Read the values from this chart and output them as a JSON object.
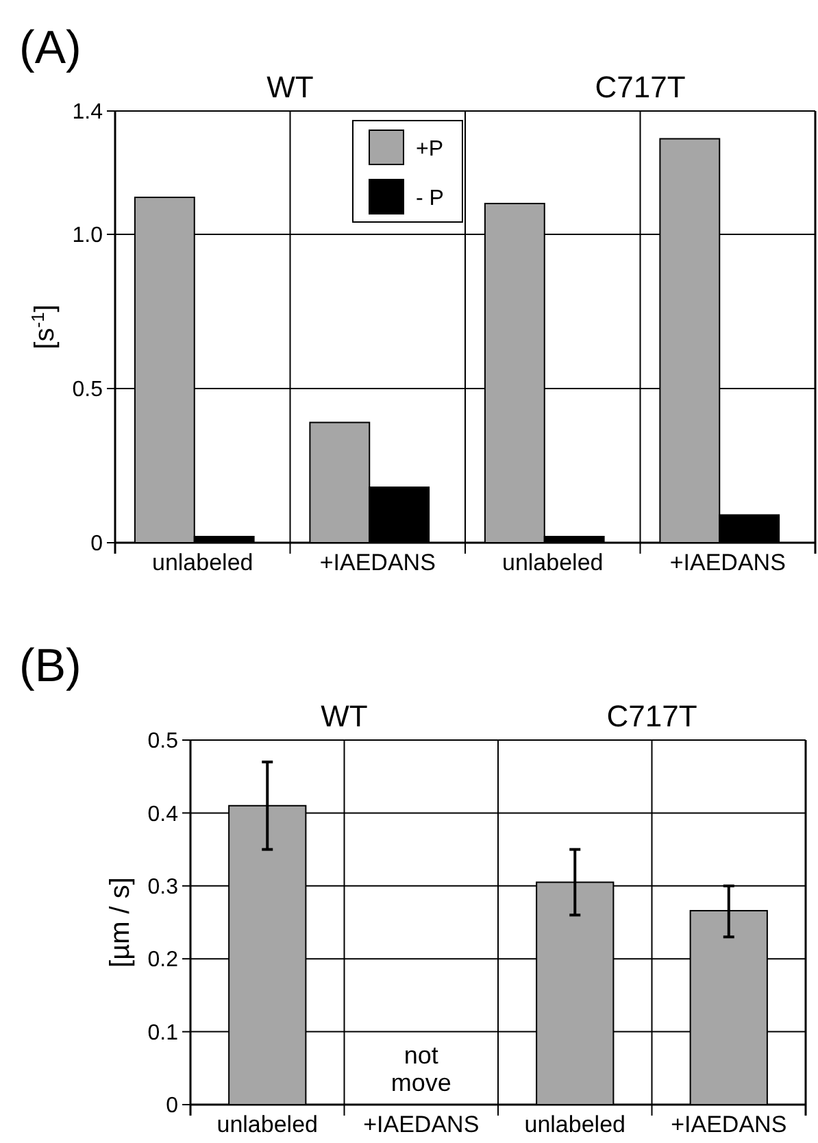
{
  "chart_data": [
    {
      "type": "bar",
      "title": "(A)",
      "ylabel": "[s$^{-1}$]",
      "categories": [
        "unlabeled",
        "+IAEDANS",
        "unlabeled",
        "+IAEDANS"
      ],
      "series": [
        {
          "name": "+P",
          "color": "#a6a6a6",
          "values": [
            1.12,
            0.39,
            1.1,
            1.31
          ]
        },
        {
          "name": "- P",
          "color": "#000000",
          "values": [
            0.02,
            0.18,
            0.02,
            0.09
          ]
        }
      ],
      "ylim": [
        0,
        1.4
      ],
      "yticks": [
        0,
        0.5,
        {
          "value": 1,
          "label": "1.0"
        },
        1.4
      ],
      "grid": true,
      "legend": "top",
      "annotations": [
        "WT",
        "C717T"
      ]
    },
    {
      "type": "bar",
      "title": "(B)",
      "ylabel": "[µm / s]",
      "categories": [
        "unlabeled",
        "+IAEDANS",
        "unlabeled",
        "+IAEDANS"
      ],
      "series": [
        {
          "color": "#a6a6a6",
          "values": [
            0.41,
            null,
            0.305,
            0.266
          ],
          "errors": [
            [
              0.35,
              0.47
            ],
            null,
            [
              0.26,
              0.35
            ],
            [
              0.23,
              0.3
            ]
          ]
        }
      ],
      "ylim": [
        0,
        0.5
      ],
      "yticks": [
        0,
        0.1,
        0.2,
        0.3,
        0.4,
        0.5
      ],
      "grid": true,
      "annotations": [
        "WT",
        "C717T",
        "not move"
      ]
    }
  ]
}
